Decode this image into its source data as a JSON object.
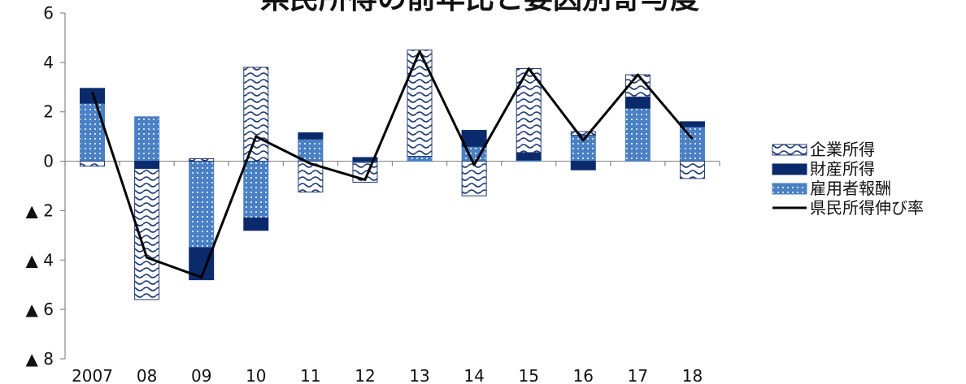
{
  "chart_data": {
    "type": "bar",
    "title": "県民所得の前年比と要因別寄与度",
    "xlabel": "",
    "ylabel": "",
    "ylim": [
      -8,
      6
    ],
    "y_ticks": [
      {
        "value": 6,
        "label": "6"
      },
      {
        "value": 4,
        "label": "4"
      },
      {
        "value": 2,
        "label": "2"
      },
      {
        "value": 0,
        "label": "0"
      },
      {
        "value": -2,
        "label": "▲ 2"
      },
      {
        "value": -4,
        "label": "▲ 4"
      },
      {
        "value": -6,
        "label": "▲ 6"
      },
      {
        "value": -8,
        "label": "▲ 8"
      }
    ],
    "categories": [
      "2007",
      "08",
      "09",
      "10",
      "11",
      "12",
      "13",
      "14",
      "15",
      "16",
      "17",
      "18"
    ],
    "grid": false,
    "legend_position": "right",
    "series": [
      {
        "name": "企業所得",
        "kind": "stacked-bar",
        "pattern": "wave",
        "color": "#1f3a73",
        "values": [
          -0.2,
          -5.3,
          0.1,
          3.8,
          -1.25,
          -0.8,
          4.3,
          -1.4,
          3.4,
          0.15,
          0.9,
          -0.7
        ]
      },
      {
        "name": "財産所得",
        "kind": "stacked-bar",
        "pattern": "solid",
        "color": "#0b2a6b",
        "values": [
          0.6,
          -0.3,
          -1.3,
          -0.5,
          0.25,
          0.15,
          0.0,
          0.65,
          0.3,
          -0.35,
          0.45,
          0.2
        ]
      },
      {
        "name": "雇用者報酬",
        "kind": "stacked-bar",
        "pattern": "dots",
        "color": "#4a80c4",
        "values": [
          2.35,
          1.8,
          -3.5,
          -2.3,
          0.9,
          -0.05,
          0.2,
          0.6,
          0.05,
          1.05,
          2.15,
          1.4
        ]
      },
      {
        "name": "県民所得伸び率",
        "kind": "line",
        "color": "#000000",
        "values": [
          2.8,
          -3.9,
          -4.7,
          1.0,
          -0.1,
          -0.75,
          4.45,
          -0.15,
          3.75,
          0.85,
          3.5,
          0.9
        ]
      }
    ]
  }
}
